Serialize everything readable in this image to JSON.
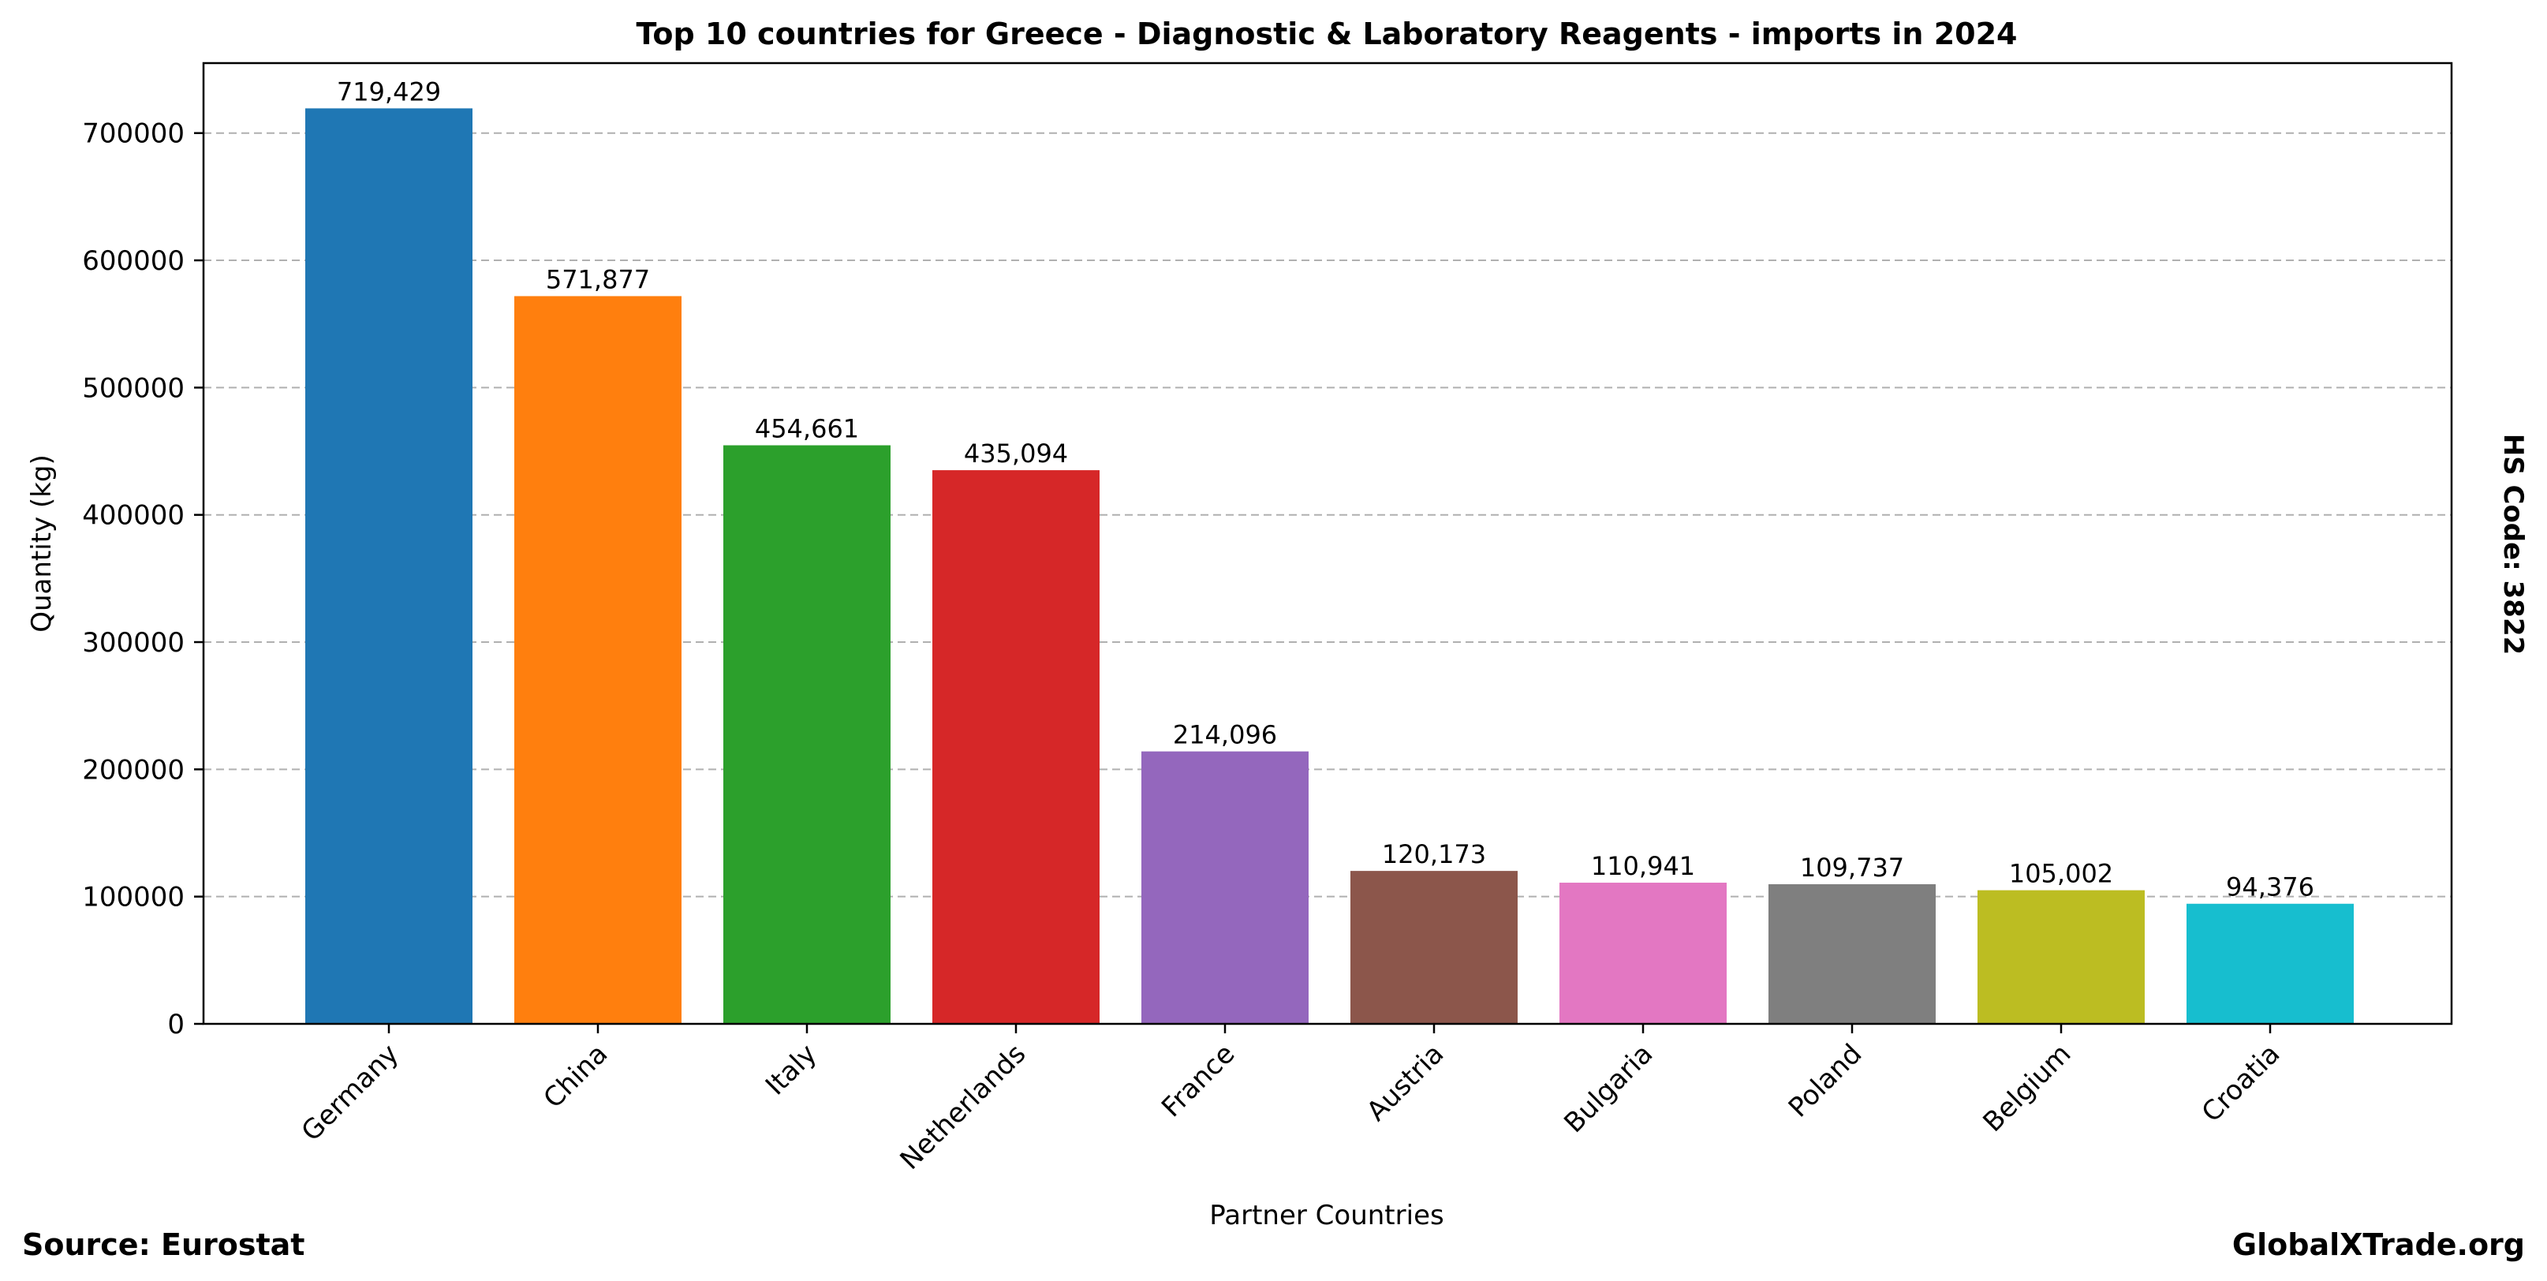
{
  "chart_data": {
    "type": "bar",
    "title": "Top 10 countries for Greece - Diagnostic & Laboratory Reagents - imports in 2024",
    "xlabel": "Partner Countries",
    "ylabel": "Quantity (kg)",
    "categories": [
      "Germany",
      "China",
      "Italy",
      "Netherlands",
      "France",
      "Austria",
      "Bulgaria",
      "Poland",
      "Belgium",
      "Croatia"
    ],
    "values": [
      719429,
      571877,
      454661,
      435094,
      214096,
      120173,
      110941,
      109737,
      105002,
      94376
    ],
    "data_labels": [
      "719,429",
      "571,877",
      "454,661",
      "435,094",
      "214,096",
      "120,173",
      "110,941",
      "109,737",
      "105,002",
      "94,376"
    ],
    "colors": [
      "#1f77b4",
      "#ff7f0e",
      "#2ca02c",
      "#d62728",
      "#9467bd",
      "#8c564b",
      "#e377c2",
      "#7f7f7f",
      "#bcbd22",
      "#17becf"
    ],
    "ylim": [
      0,
      755000
    ],
    "yticks": [
      0,
      100000,
      200000,
      300000,
      400000,
      500000,
      600000,
      700000
    ],
    "ytick_labels": [
      "0",
      "100000",
      "200000",
      "300000",
      "400000",
      "500000",
      "600000",
      "700000"
    ],
    "grid": "horizontal dashed",
    "legend": "none"
  },
  "annotations": {
    "source": "Source: Eurostat",
    "brand": "GlobalXTrade.org",
    "hs_code": "HS Code: 3822"
  }
}
